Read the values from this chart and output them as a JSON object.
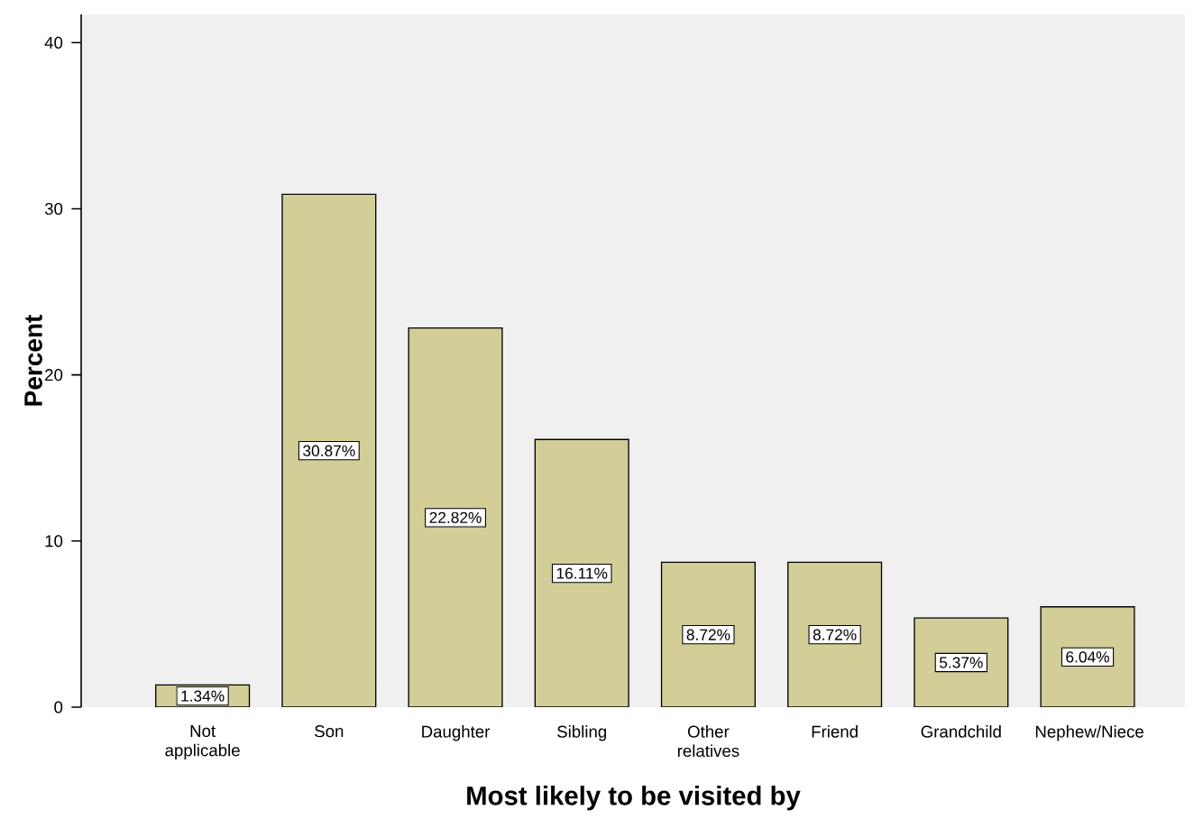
{
  "chart_data": {
    "type": "bar",
    "xlabel": "Most likely to be visited by",
    "ylabel": "Percent",
    "categories": [
      "Not applicable",
      "Son",
      "Daughter",
      "Sibling",
      "Other relatives",
      "Friend",
      "Grandchild",
      "Nephew/Niece"
    ],
    "values": [
      1.34,
      30.87,
      22.82,
      16.11,
      8.72,
      8.72,
      5.37,
      6.04
    ],
    "value_labels": [
      "1.34%",
      "30.87%",
      "22.82%",
      "16.11%",
      "8.72%",
      "8.72%",
      "5.37%",
      "6.04%"
    ],
    "color": "#d3ce98",
    "ylim": [
      0,
      41.7
    ],
    "yticks": [
      0,
      10,
      20,
      30,
      40
    ]
  }
}
